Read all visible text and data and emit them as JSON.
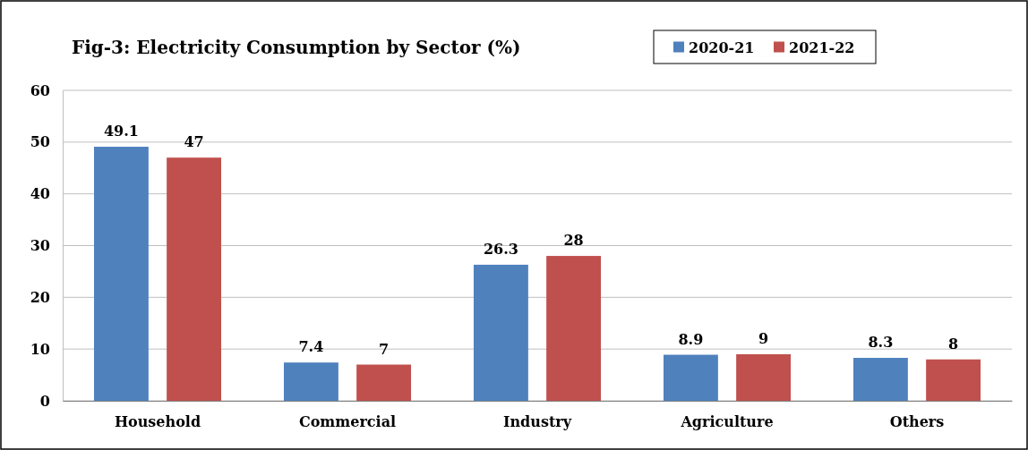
{
  "chart_data": {
    "type": "bar",
    "title": "Fig-3: Electricity Consumption by Sector (%)",
    "categories": [
      "Household",
      "Commercial",
      "Industry",
      "Agriculture",
      "Others"
    ],
    "series": [
      {
        "name": "2020-21",
        "color": "#4f81bd",
        "values": [
          49.1,
          7.4,
          26.3,
          8.9,
          8.3
        ]
      },
      {
        "name": "2021-22",
        "color": "#c0504d",
        "values": [
          47,
          7,
          28,
          9,
          8
        ]
      }
    ],
    "ylim": [
      0,
      60
    ],
    "yticks": [
      0,
      10,
      20,
      30,
      40,
      50,
      60
    ],
    "grid": "y",
    "legend": "top right",
    "data_labels": true
  }
}
